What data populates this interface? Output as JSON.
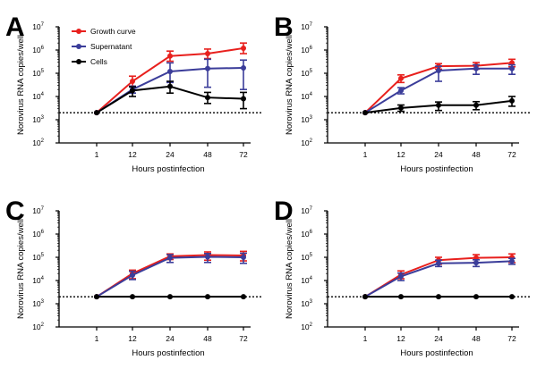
{
  "legend": {
    "placement": "top-left of panel A",
    "entries": [
      {
        "label": "Growth curve",
        "color": "#e8201d"
      },
      {
        "label": "Supernatant",
        "color": "#3b3d9a"
      },
      {
        "label": "Cells",
        "color": "#000000"
      }
    ]
  },
  "colors": {
    "growth": "#e8201d",
    "supernatant": "#3b3d9a",
    "cells": "#000000"
  },
  "chart_data": [
    {
      "panel": "A",
      "type": "line",
      "xlabel": "Hours postinfection",
      "ylabel": "Norovirus RNA copies/well",
      "x": [
        "1",
        "12",
        "24",
        "48",
        "72"
      ],
      "y_scale": "log",
      "ylim": [
        100,
        10000000
      ],
      "y_ticks": [
        2,
        3,
        4,
        5,
        6,
        7
      ],
      "detection_limit": 2000,
      "series": [
        {
          "name": "Growth curve",
          "color": "#e8201d",
          "values": [
            2000,
            45000,
            550000,
            700000,
            1200000
          ],
          "err_low": [
            2000,
            28000,
            330000,
            430000,
            700000
          ],
          "err_high": [
            2000,
            75000,
            900000,
            1100000,
            2000000
          ]
        },
        {
          "name": "Supernatant",
          "color": "#3b3d9a",
          "values": [
            2000,
            20000,
            120000,
            160000,
            170000
          ],
          "err_low": [
            2000,
            14000,
            40000,
            25000,
            20000
          ],
          "err_high": [
            2000,
            28000,
            280000,
            400000,
            370000
          ]
        },
        {
          "name": "Cells",
          "color": "#000000",
          "values": [
            2000,
            18000,
            27000,
            9000,
            8000
          ],
          "err_low": [
            2000,
            10000,
            14000,
            5000,
            3000
          ],
          "err_high": [
            2000,
            26000,
            45000,
            15000,
            15000
          ]
        }
      ]
    },
    {
      "panel": "B",
      "type": "line",
      "xlabel": "Hours postinfection",
      "ylabel": "Norovirus RNA copies/well",
      "x": [
        "1",
        "12",
        "24",
        "48",
        "72"
      ],
      "y_scale": "log",
      "ylim": [
        100,
        10000000
      ],
      "y_ticks": [
        2,
        3,
        4,
        5,
        6,
        7
      ],
      "detection_limit": 2000,
      "series": [
        {
          "name": "Growth curve",
          "color": "#e8201d",
          "values": [
            2000,
            60000,
            200000,
            210000,
            280000
          ],
          "err_low": [
            2000,
            40000,
            150000,
            150000,
            190000
          ],
          "err_high": [
            2000,
            85000,
            260000,
            290000,
            400000
          ]
        },
        {
          "name": "Supernatant",
          "color": "#3b3d9a",
          "values": [
            2000,
            18000,
            130000,
            160000,
            160000
          ],
          "err_low": [
            2000,
            13000,
            45000,
            90000,
            90000
          ],
          "err_high": [
            2000,
            24000,
            200000,
            230000,
            230000
          ]
        },
        {
          "name": "Cells",
          "color": "#000000",
          "values": [
            2000,
            3200,
            4200,
            4200,
            6500
          ],
          "err_low": [
            2000,
            2300,
            2500,
            2700,
            3800
          ],
          "err_high": [
            2000,
            4300,
            5800,
            6000,
            10000
          ]
        }
      ]
    },
    {
      "panel": "C",
      "type": "line",
      "xlabel": "Hours postinfection",
      "ylabel": "Norovirus RNA copies/well",
      "x": [
        "1",
        "12",
        "24",
        "48",
        "72"
      ],
      "y_scale": "log",
      "ylim": [
        100,
        10000000
      ],
      "y_ticks": [
        2,
        3,
        4,
        5,
        6,
        7
      ],
      "detection_limit": 2000,
      "series": [
        {
          "name": "Growth curve",
          "color": "#e8201d",
          "values": [
            2000,
            20000,
            110000,
            125000,
            120000
          ],
          "err_low": [
            2000,
            12000,
            80000,
            75000,
            70000
          ],
          "err_high": [
            2000,
            28000,
            140000,
            170000,
            180000
          ]
        },
        {
          "name": "Supernatant",
          "color": "#3b3d9a",
          "values": [
            2000,
            17000,
            95000,
            105000,
            100000
          ],
          "err_low": [
            2000,
            11000,
            60000,
            60000,
            55000
          ],
          "err_high": [
            2000,
            25000,
            130000,
            145000,
            150000
          ]
        },
        {
          "name": "Cells",
          "color": "#000000",
          "values": [
            2000,
            2000,
            2000,
            2000,
            2000
          ],
          "err_low": [
            2000,
            2000,
            2000,
            2000,
            2000
          ],
          "err_high": [
            2000,
            2000,
            2000,
            2000,
            2000
          ]
        }
      ]
    },
    {
      "panel": "D",
      "type": "line",
      "xlabel": "Hours postinfection",
      "ylabel": "Norovirus RNA copies/well",
      "x": [
        "1",
        "12",
        "24",
        "48",
        "72"
      ],
      "y_scale": "log",
      "ylim": [
        100,
        10000000
      ],
      "y_ticks": [
        2,
        3,
        4,
        5,
        6,
        7
      ],
      "detection_limit": 2000,
      "series": [
        {
          "name": "Growth curve",
          "color": "#e8201d",
          "values": [
            2000,
            18000,
            75000,
            95000,
            100000
          ],
          "err_low": [
            2000,
            12000,
            50000,
            60000,
            60000
          ],
          "err_high": [
            2000,
            26000,
            100000,
            130000,
            140000
          ]
        },
        {
          "name": "Supernatant",
          "color": "#3b3d9a",
          "values": [
            2000,
            15000,
            55000,
            58000,
            68000
          ],
          "err_low": [
            2000,
            10000,
            40000,
            40000,
            50000
          ],
          "err_high": [
            2000,
            21000,
            75000,
            78000,
            90000
          ]
        },
        {
          "name": "Cells",
          "color": "#000000",
          "values": [
            2000,
            2000,
            2000,
            2000,
            2000
          ],
          "err_low": [
            2000,
            2000,
            2000,
            2000,
            2000
          ],
          "err_high": [
            2000,
            2000,
            2000,
            2000,
            2000
          ]
        }
      ]
    }
  ]
}
